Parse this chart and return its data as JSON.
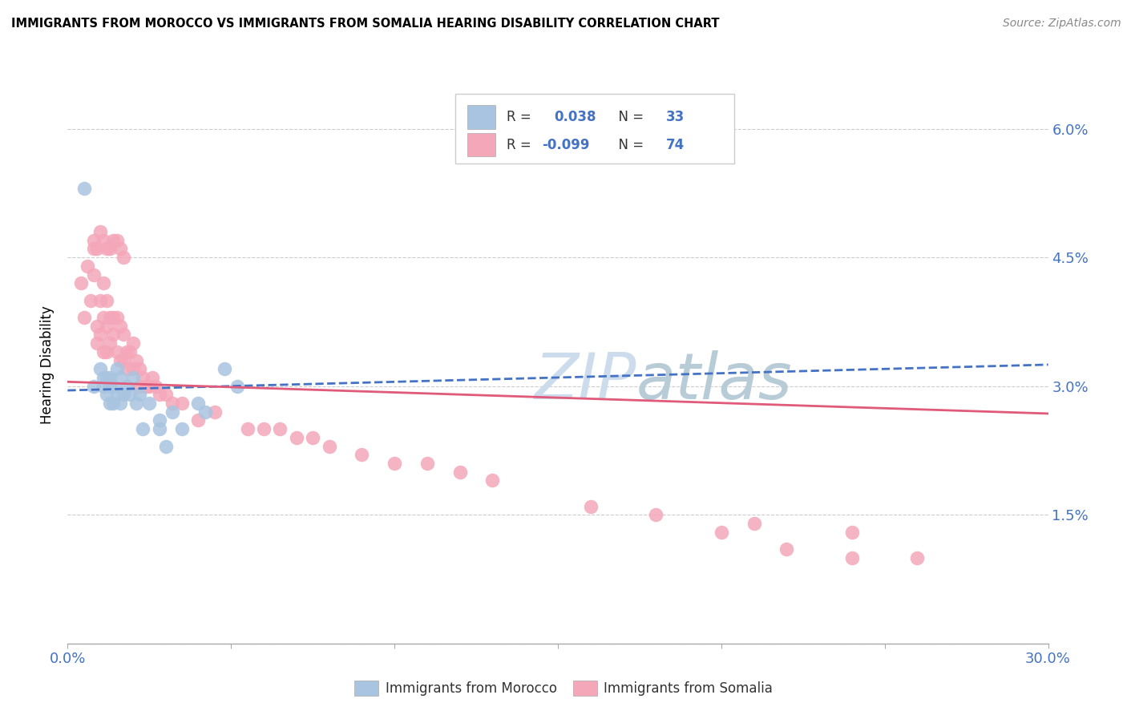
{
  "title": "IMMIGRANTS FROM MOROCCO VS IMMIGRANTS FROM SOMALIA HEARING DISABILITY CORRELATION CHART",
  "source": "Source: ZipAtlas.com",
  "ylabel": "Hearing Disability",
  "xlim": [
    0.0,
    0.3
  ],
  "ylim": [
    0.0,
    0.065
  ],
  "xtick_positions": [
    0.0,
    0.05,
    0.1,
    0.15,
    0.2,
    0.25,
    0.3
  ],
  "xticklabels": [
    "0.0%",
    "",
    "",
    "",
    "",
    "",
    "30.0%"
  ],
  "ytick_positions": [
    0.0,
    0.015,
    0.03,
    0.045,
    0.06
  ],
  "yticklabels_right": [
    "",
    "1.5%",
    "3.0%",
    "4.5%",
    "6.0%"
  ],
  "morocco_R": 0.038,
  "morocco_N": 33,
  "somalia_R": -0.099,
  "somalia_N": 74,
  "morocco_color": "#a8c4e0",
  "somalia_color": "#f4a7b9",
  "morocco_line_color": "#4472c4",
  "somalia_line_color": "#e05a7a",
  "watermark_color": "#ccdcec",
  "grid_color": "#cccccc",
  "morocco_x": [
    0.005,
    0.008,
    0.01,
    0.011,
    0.011,
    0.012,
    0.012,
    0.013,
    0.013,
    0.013,
    0.014,
    0.014,
    0.015,
    0.015,
    0.016,
    0.016,
    0.017,
    0.018,
    0.019,
    0.02,
    0.021,
    0.022,
    0.023,
    0.025,
    0.028,
    0.028,
    0.03,
    0.032,
    0.035,
    0.04,
    0.042,
    0.048,
    0.052
  ],
  "morocco_y": [
    0.053,
    0.03,
    0.032,
    0.031,
    0.03,
    0.031,
    0.029,
    0.031,
    0.03,
    0.028,
    0.03,
    0.028,
    0.032,
    0.029,
    0.031,
    0.028,
    0.029,
    0.03,
    0.029,
    0.031,
    0.028,
    0.029,
    0.025,
    0.028,
    0.026,
    0.025,
    0.023,
    0.027,
    0.025,
    0.028,
    0.027,
    0.032,
    0.03
  ],
  "somalia_x": [
    0.004,
    0.005,
    0.006,
    0.007,
    0.008,
    0.008,
    0.009,
    0.009,
    0.01,
    0.01,
    0.011,
    0.011,
    0.011,
    0.012,
    0.012,
    0.012,
    0.013,
    0.013,
    0.014,
    0.014,
    0.015,
    0.015,
    0.016,
    0.016,
    0.017,
    0.017,
    0.018,
    0.018,
    0.019,
    0.02,
    0.02,
    0.021,
    0.022,
    0.022,
    0.023,
    0.024,
    0.025,
    0.026,
    0.027,
    0.028,
    0.03,
    0.032,
    0.035,
    0.04,
    0.045,
    0.055,
    0.06,
    0.065,
    0.07,
    0.075,
    0.08,
    0.09,
    0.1,
    0.11,
    0.12,
    0.13,
    0.16,
    0.18,
    0.2,
    0.22,
    0.24,
    0.26,
    0.008,
    0.009,
    0.01,
    0.011,
    0.012,
    0.013,
    0.014,
    0.015,
    0.016,
    0.017,
    0.21,
    0.24
  ],
  "somalia_y": [
    0.042,
    0.038,
    0.044,
    0.04,
    0.046,
    0.043,
    0.037,
    0.035,
    0.04,
    0.036,
    0.042,
    0.038,
    0.034,
    0.04,
    0.037,
    0.034,
    0.038,
    0.035,
    0.038,
    0.036,
    0.038,
    0.034,
    0.037,
    0.033,
    0.036,
    0.033,
    0.034,
    0.032,
    0.034,
    0.035,
    0.032,
    0.033,
    0.032,
    0.03,
    0.031,
    0.03,
    0.03,
    0.031,
    0.03,
    0.029,
    0.029,
    0.028,
    0.028,
    0.026,
    0.027,
    0.025,
    0.025,
    0.025,
    0.024,
    0.024,
    0.023,
    0.022,
    0.021,
    0.021,
    0.02,
    0.019,
    0.016,
    0.015,
    0.013,
    0.011,
    0.01,
    0.01,
    0.047,
    0.046,
    0.048,
    0.047,
    0.046,
    0.046,
    0.047,
    0.047,
    0.046,
    0.045,
    0.014,
    0.013
  ]
}
